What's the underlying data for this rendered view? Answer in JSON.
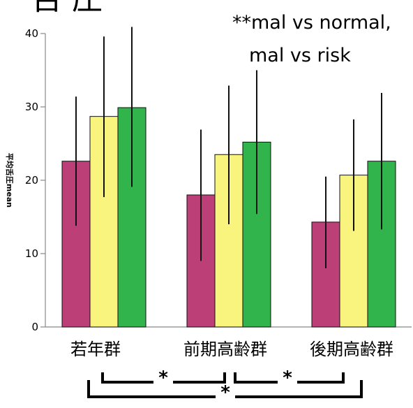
{
  "chart_data": {
    "type": "bar",
    "title": "",
    "title_fragment": "舌 圧",
    "annotation_lines": [
      "**mal vs normal,",
      "mal vs risk"
    ],
    "ylabel": "平均舌圧mean",
    "ylim": [
      0,
      40
    ],
    "yticks": [
      0,
      10,
      20,
      30,
      40
    ],
    "categories": [
      "若年群",
      "前期高齢群",
      "後期高齢群"
    ],
    "series": [
      {
        "color": "#bc3f78",
        "values": [
          22.6,
          18.0,
          14.3
        ],
        "err_low": [
          13.8,
          9.0,
          8.0
        ],
        "err_high": [
          31.4,
          26.9,
          20.5
        ]
      },
      {
        "color": "#f8f47e",
        "values": [
          28.7,
          23.5,
          20.7
        ],
        "err_low": [
          17.7,
          14.0,
          13.1
        ],
        "err_high": [
          39.6,
          32.9,
          28.3
        ]
      },
      {
        "color": "#31b44b",
        "values": [
          29.9,
          25.2,
          22.6
        ],
        "err_low": [
          19.1,
          15.4,
          13.3
        ],
        "err_high": [
          40.9,
          35.0,
          31.9
        ]
      }
    ],
    "significance": [
      {
        "between": [
          "若年群",
          "前期高齢群"
        ],
        "label": "*"
      },
      {
        "between": [
          "前期高齢群",
          "後期高齢群"
        ],
        "label": "*"
      },
      {
        "between": [
          "若年群",
          "後期高齢群"
        ],
        "label": "*"
      }
    ],
    "grid": false,
    "legend": "none"
  }
}
